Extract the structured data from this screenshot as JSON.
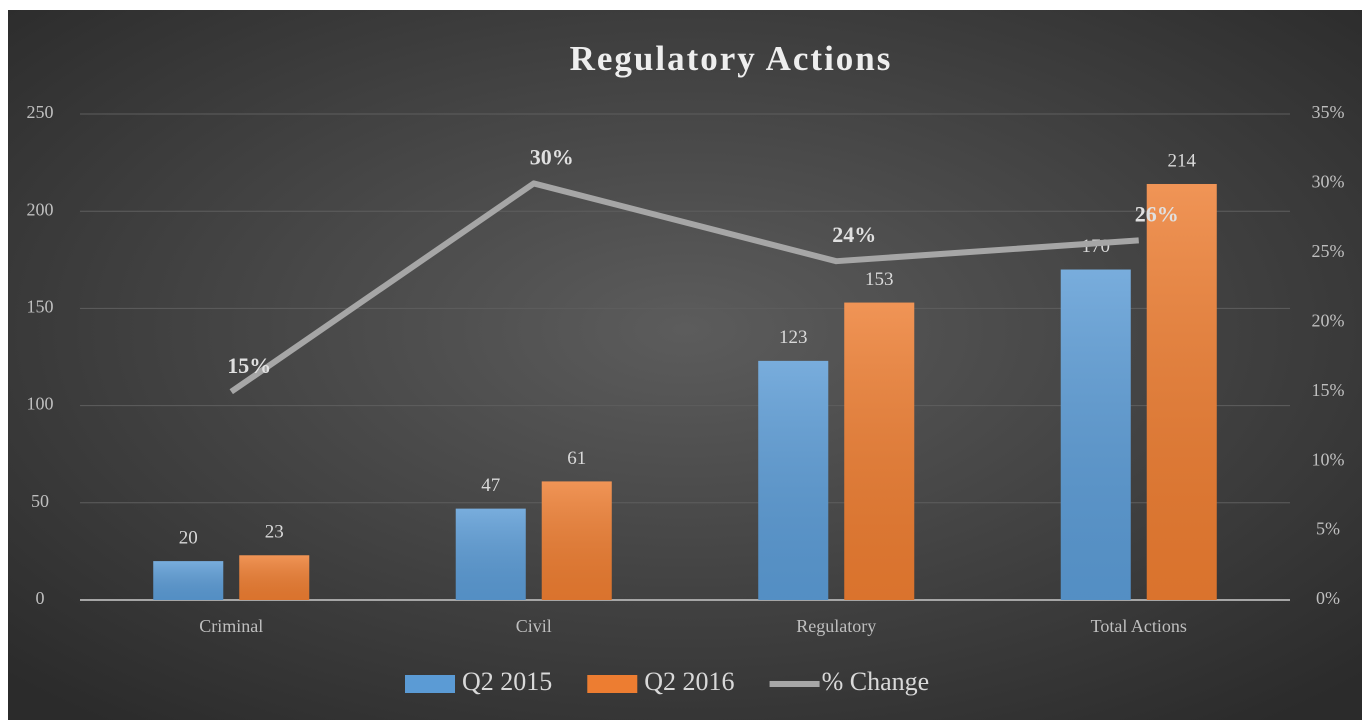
{
  "chart_data": {
    "type": "bar",
    "title": "Regulatory Actions",
    "categories": [
      "Criminal",
      "Civil",
      "Regulatory",
      "Total Actions"
    ],
    "series": [
      {
        "name": "Q2 2015",
        "color": "#5b9bd5",
        "values": [
          20,
          47,
          123,
          170
        ]
      },
      {
        "name": "Q2 2016",
        "color": "#ed7d31",
        "values": [
          23,
          61,
          153,
          214
        ]
      },
      {
        "name": "% Change",
        "color": "#a6a6a6",
        "type": "line",
        "axis": "y2",
        "values": [
          15,
          30,
          24.4,
          25.9
        ],
        "value_labels": [
          "15%",
          "30%",
          "24%",
          "26%"
        ]
      }
    ],
    "ylim": [
      0,
      250
    ],
    "yticks": [
      0,
      50,
      100,
      150,
      200,
      250
    ],
    "y2lim": [
      0,
      35
    ],
    "y2ticks": [
      {
        "value": 0,
        "label": "0%"
      },
      {
        "value": 5,
        "label": "5%"
      },
      {
        "value": 10,
        "label": "10%"
      },
      {
        "value": 15,
        "label": "15%"
      },
      {
        "value": 20,
        "label": "20%"
      },
      {
        "value": 25,
        "label": "25%"
      },
      {
        "value": 30,
        "label": "30%"
      },
      {
        "value": 35,
        "label": "35%"
      }
    ],
    "grid": true,
    "legend": "bottom"
  }
}
